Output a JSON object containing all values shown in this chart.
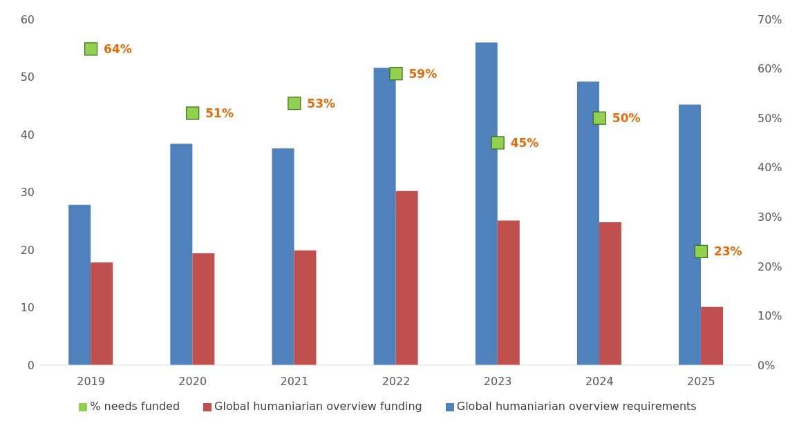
{
  "chart_data": {
    "type": "bar",
    "categories": [
      "2019",
      "2020",
      "2021",
      "2022",
      "2023",
      "2024",
      "2025"
    ],
    "series": [
      {
        "name": "Global humaniarian overview requirements",
        "color": "#4f81bd",
        "values": [
          27.8,
          38.4,
          37.6,
          51.6,
          56.0,
          49.2,
          45.2
        ]
      },
      {
        "name": "Global humaniarian overview funding",
        "color": "#c0504d",
        "values": [
          17.8,
          19.4,
          19.9,
          30.2,
          25.1,
          24.8,
          10.1
        ]
      },
      {
        "name": "% needs funded",
        "type": "scatter",
        "axis": "y2",
        "color": "#92d050",
        "marker": "square",
        "values": [
          64,
          51,
          53,
          59,
          45,
          50,
          23
        ],
        "value_labels": [
          "64%",
          "51%",
          "53%",
          "59%",
          "45%",
          "50%",
          "23%"
        ]
      }
    ],
    "ylim": [
      0,
      60
    ],
    "yticks": [
      0,
      10,
      20,
      30,
      40,
      50,
      60
    ],
    "y2lim": [
      0,
      70
    ],
    "y2ticks": [
      {
        "value": 0,
        "label": "0%"
      },
      {
        "value": 10,
        "label": "10%"
      },
      {
        "value": 20,
        "label": "20%"
      },
      {
        "value": 30,
        "label": "30%"
      },
      {
        "value": 40,
        "label": "40%"
      },
      {
        "value": 50,
        "label": "50%"
      },
      {
        "value": 60,
        "label": "60%"
      },
      {
        "value": 70,
        "label": "70%"
      }
    ],
    "grid": false,
    "legend": "bottom"
  }
}
